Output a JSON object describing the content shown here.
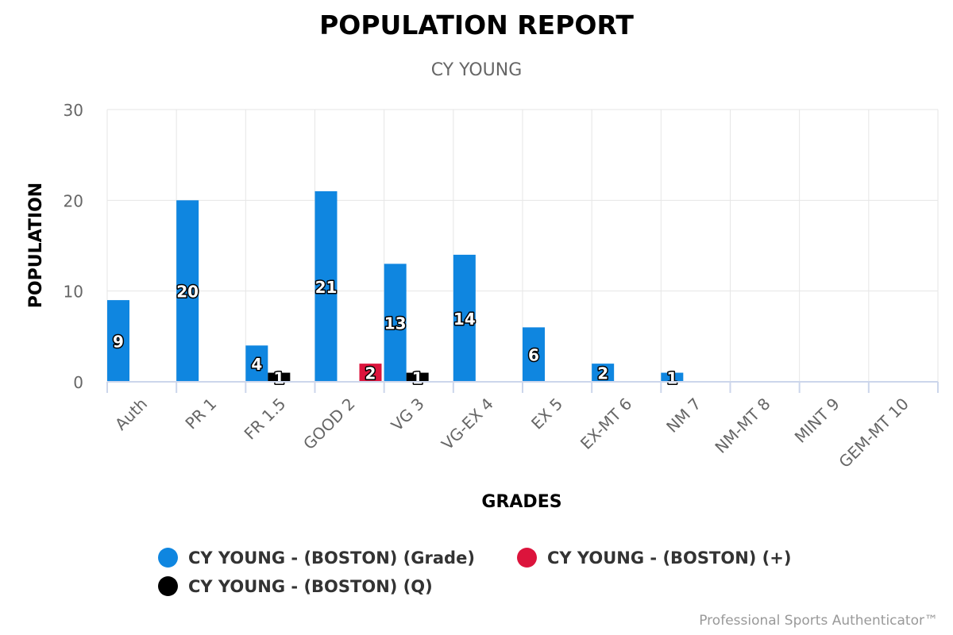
{
  "chart_data": {
    "type": "bar",
    "title": "POPULATION REPORT",
    "subtitle": "CY YOUNG",
    "xlabel": "GRADES",
    "ylabel": "POPULATION",
    "ylim": [
      0,
      30
    ],
    "yticks": [
      0,
      10,
      20,
      30
    ],
    "categories": [
      "Auth",
      "PR 1",
      "FR 1.5",
      "GOOD 2",
      "VG 3",
      "VG-EX 4",
      "EX 5",
      "EX-MT 6",
      "NM 7",
      "NM-MT 8",
      "MINT 9",
      "GEM-MT 10"
    ],
    "series": [
      {
        "name": "CY YOUNG - (BOSTON) (Grade)",
        "color": "#0f86e0",
        "values": [
          9,
          20,
          4,
          21,
          13,
          14,
          6,
          2,
          1,
          0,
          0,
          0
        ]
      },
      {
        "name": "CY YOUNG - (BOSTON) (+)",
        "color": "#dc143c",
        "values": [
          0,
          0,
          0,
          2,
          0,
          0,
          0,
          0,
          0,
          0,
          0,
          0
        ]
      },
      {
        "name": "CY YOUNG - (BOSTON) (Q)",
        "color": "#000000",
        "values": [
          0,
          0,
          1,
          0,
          1,
          0,
          0,
          0,
          0,
          0,
          0,
          0
        ]
      }
    ],
    "grid": true,
    "legend_position": "bottom-center"
  },
  "credits": "Professional Sports Authenticator™"
}
